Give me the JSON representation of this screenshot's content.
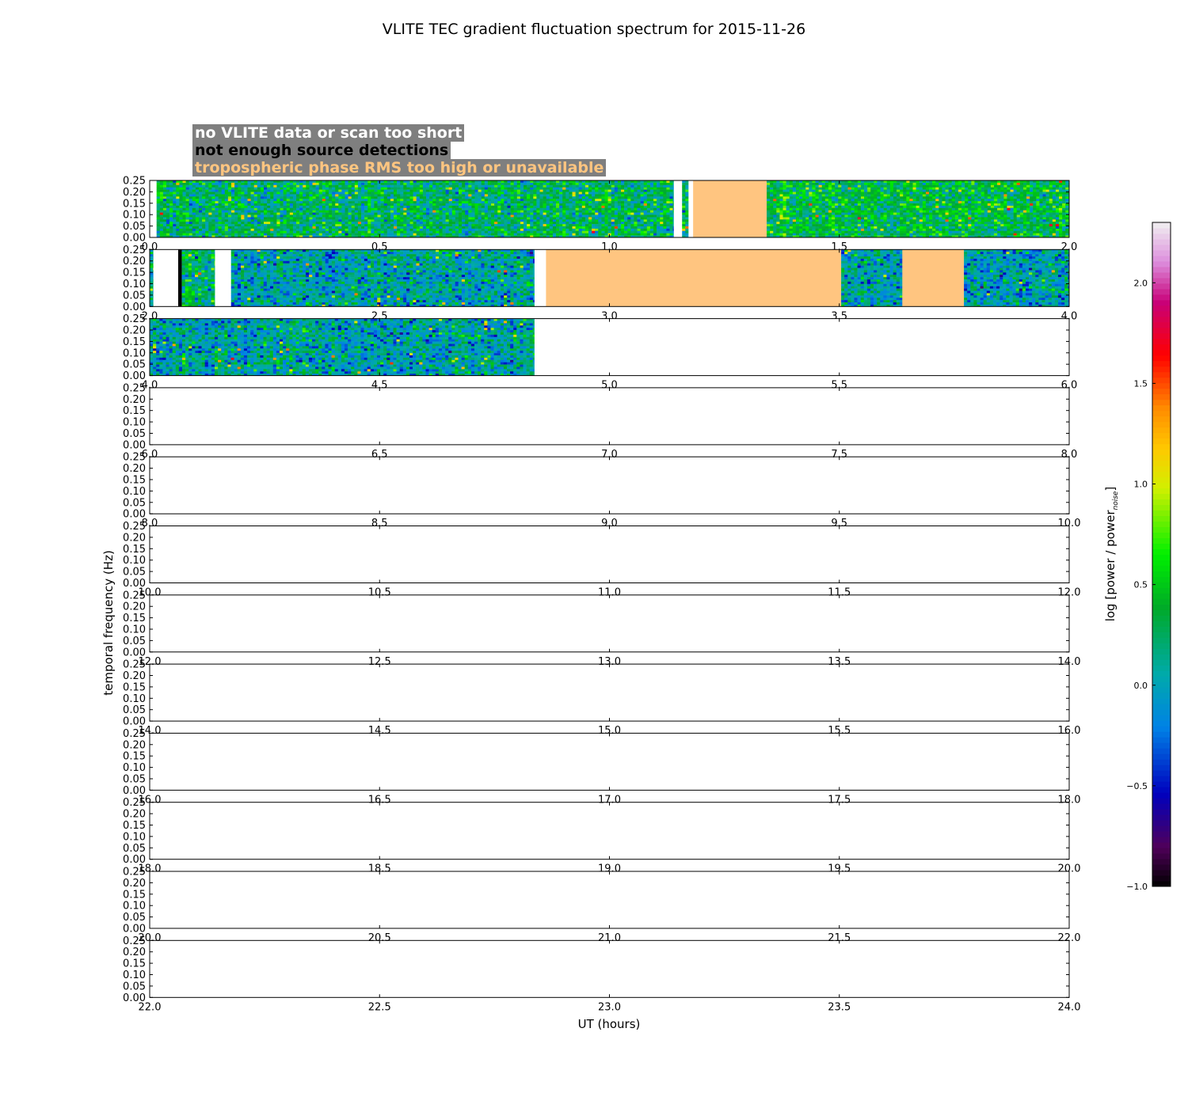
{
  "chart_data": {
    "type": "heatmap",
    "title": "VLITE TEC gradient fluctuation spectrum for 2015-11-26",
    "xlabel": "UT (hours)",
    "ylabel": "temporal frequency (Hz)",
    "colorbar_label": "log [power / power",
    "colorbar_label_subscript": "noise",
    "colorbar_label_suffix": "]",
    "colorbar_ticks": [
      "−1.0",
      "−0.5",
      "0.0",
      "0.5",
      "1.0",
      "1.5",
      "2.0"
    ],
    "colorbar_range": [
      -1.0,
      2.3
    ],
    "yticks": [
      "0.00",
      "0.05",
      "0.10",
      "0.15",
      "0.20",
      "0.25"
    ],
    "ylim": [
      0,
      0.25
    ],
    "legend": [
      {
        "label": "no VLITE data or scan too short",
        "color": "#ffffff"
      },
      {
        "label": "not enough source detections",
        "color": "#000000"
      },
      {
        "label": "tropospheric phase RMS too high or unavailable",
        "color": "#ffc580"
      }
    ],
    "panels": [
      {
        "xticks": [
          "0.0",
          "0.5",
          "1.0",
          "1.5",
          "2.0"
        ],
        "xlim": [
          0,
          2
        ],
        "segments": [
          {
            "start": 0.0,
            "end": 0.015,
            "kind": "no_data"
          },
          {
            "start": 0.015,
            "end": 1.14,
            "kind": "data",
            "mean": 0.25
          },
          {
            "start": 1.14,
            "end": 1.158,
            "kind": "no_data"
          },
          {
            "start": 1.158,
            "end": 1.172,
            "kind": "data",
            "mean": 0.2
          },
          {
            "start": 1.172,
            "end": 1.182,
            "kind": "no_data"
          },
          {
            "start": 1.182,
            "end": 1.342,
            "kind": "tropo"
          },
          {
            "start": 1.342,
            "end": 2.0,
            "kind": "data",
            "mean": 0.35
          }
        ]
      },
      {
        "xticks": [
          "2.0",
          "2.5",
          "3.0",
          "3.5",
          "4.0"
        ],
        "xlim": [
          2,
          4
        ],
        "segments": [
          {
            "start": 2.0,
            "end": 2.008,
            "kind": "data",
            "mean": 0.1
          },
          {
            "start": 2.008,
            "end": 2.062,
            "kind": "no_data"
          },
          {
            "start": 2.062,
            "end": 2.07,
            "kind": "few_sources"
          },
          {
            "start": 2.07,
            "end": 2.142,
            "kind": "data",
            "mean": 0.2
          },
          {
            "start": 2.142,
            "end": 2.177,
            "kind": "no_data"
          },
          {
            "start": 2.177,
            "end": 2.837,
            "kind": "data",
            "mean": 0.05
          },
          {
            "start": 2.837,
            "end": 2.862,
            "kind": "no_data"
          },
          {
            "start": 2.862,
            "end": 3.504,
            "kind": "tropo"
          },
          {
            "start": 3.504,
            "end": 3.637,
            "kind": "data",
            "mean": 0.05
          },
          {
            "start": 3.637,
            "end": 3.771,
            "kind": "tropo"
          },
          {
            "start": 3.771,
            "end": 4.0,
            "kind": "data",
            "mean": 0.0
          }
        ]
      },
      {
        "xticks": [
          "4.0",
          "4.5",
          "5.0",
          "5.5",
          "6.0"
        ],
        "xlim": [
          4,
          6
        ],
        "segments": [
          {
            "start": 4.0,
            "end": 4.837,
            "kind": "data",
            "mean": 0.05
          },
          {
            "start": 4.837,
            "end": 6.0,
            "kind": "no_data"
          }
        ]
      },
      {
        "xticks": [
          "6.0",
          "6.5",
          "7.0",
          "7.5",
          "8.0"
        ],
        "xlim": [
          6,
          8
        ],
        "segments": []
      },
      {
        "xticks": [
          "8.0",
          "8.5",
          "9.0",
          "9.5",
          "10.0"
        ],
        "xlim": [
          8,
          10
        ],
        "segments": []
      },
      {
        "xticks": [
          "10.0",
          "10.5",
          "11.0",
          "11.5",
          "12.0"
        ],
        "xlim": [
          10,
          12
        ],
        "segments": []
      },
      {
        "xticks": [
          "12.0",
          "12.5",
          "13.0",
          "13.5",
          "14.0"
        ],
        "xlim": [
          12,
          14
        ],
        "segments": []
      },
      {
        "xticks": [
          "14.0",
          "14.5",
          "15.0",
          "15.5",
          "16.0"
        ],
        "xlim": [
          14,
          16
        ],
        "segments": []
      },
      {
        "xticks": [
          "16.0",
          "16.5",
          "17.0",
          "17.5",
          "18.0"
        ],
        "xlim": [
          16,
          18
        ],
        "segments": []
      },
      {
        "xticks": [
          "18.0",
          "18.5",
          "19.0",
          "19.5",
          "20.0"
        ],
        "xlim": [
          18,
          20
        ],
        "segments": []
      },
      {
        "xticks": [
          "20.0",
          "20.5",
          "21.0",
          "21.5",
          "22.0"
        ],
        "xlim": [
          20,
          22
        ],
        "segments": []
      },
      {
        "xticks": [
          "22.0",
          "22.5",
          "23.0",
          "23.5",
          "24.0"
        ],
        "xlim": [
          22,
          24
        ],
        "segments": []
      }
    ]
  }
}
